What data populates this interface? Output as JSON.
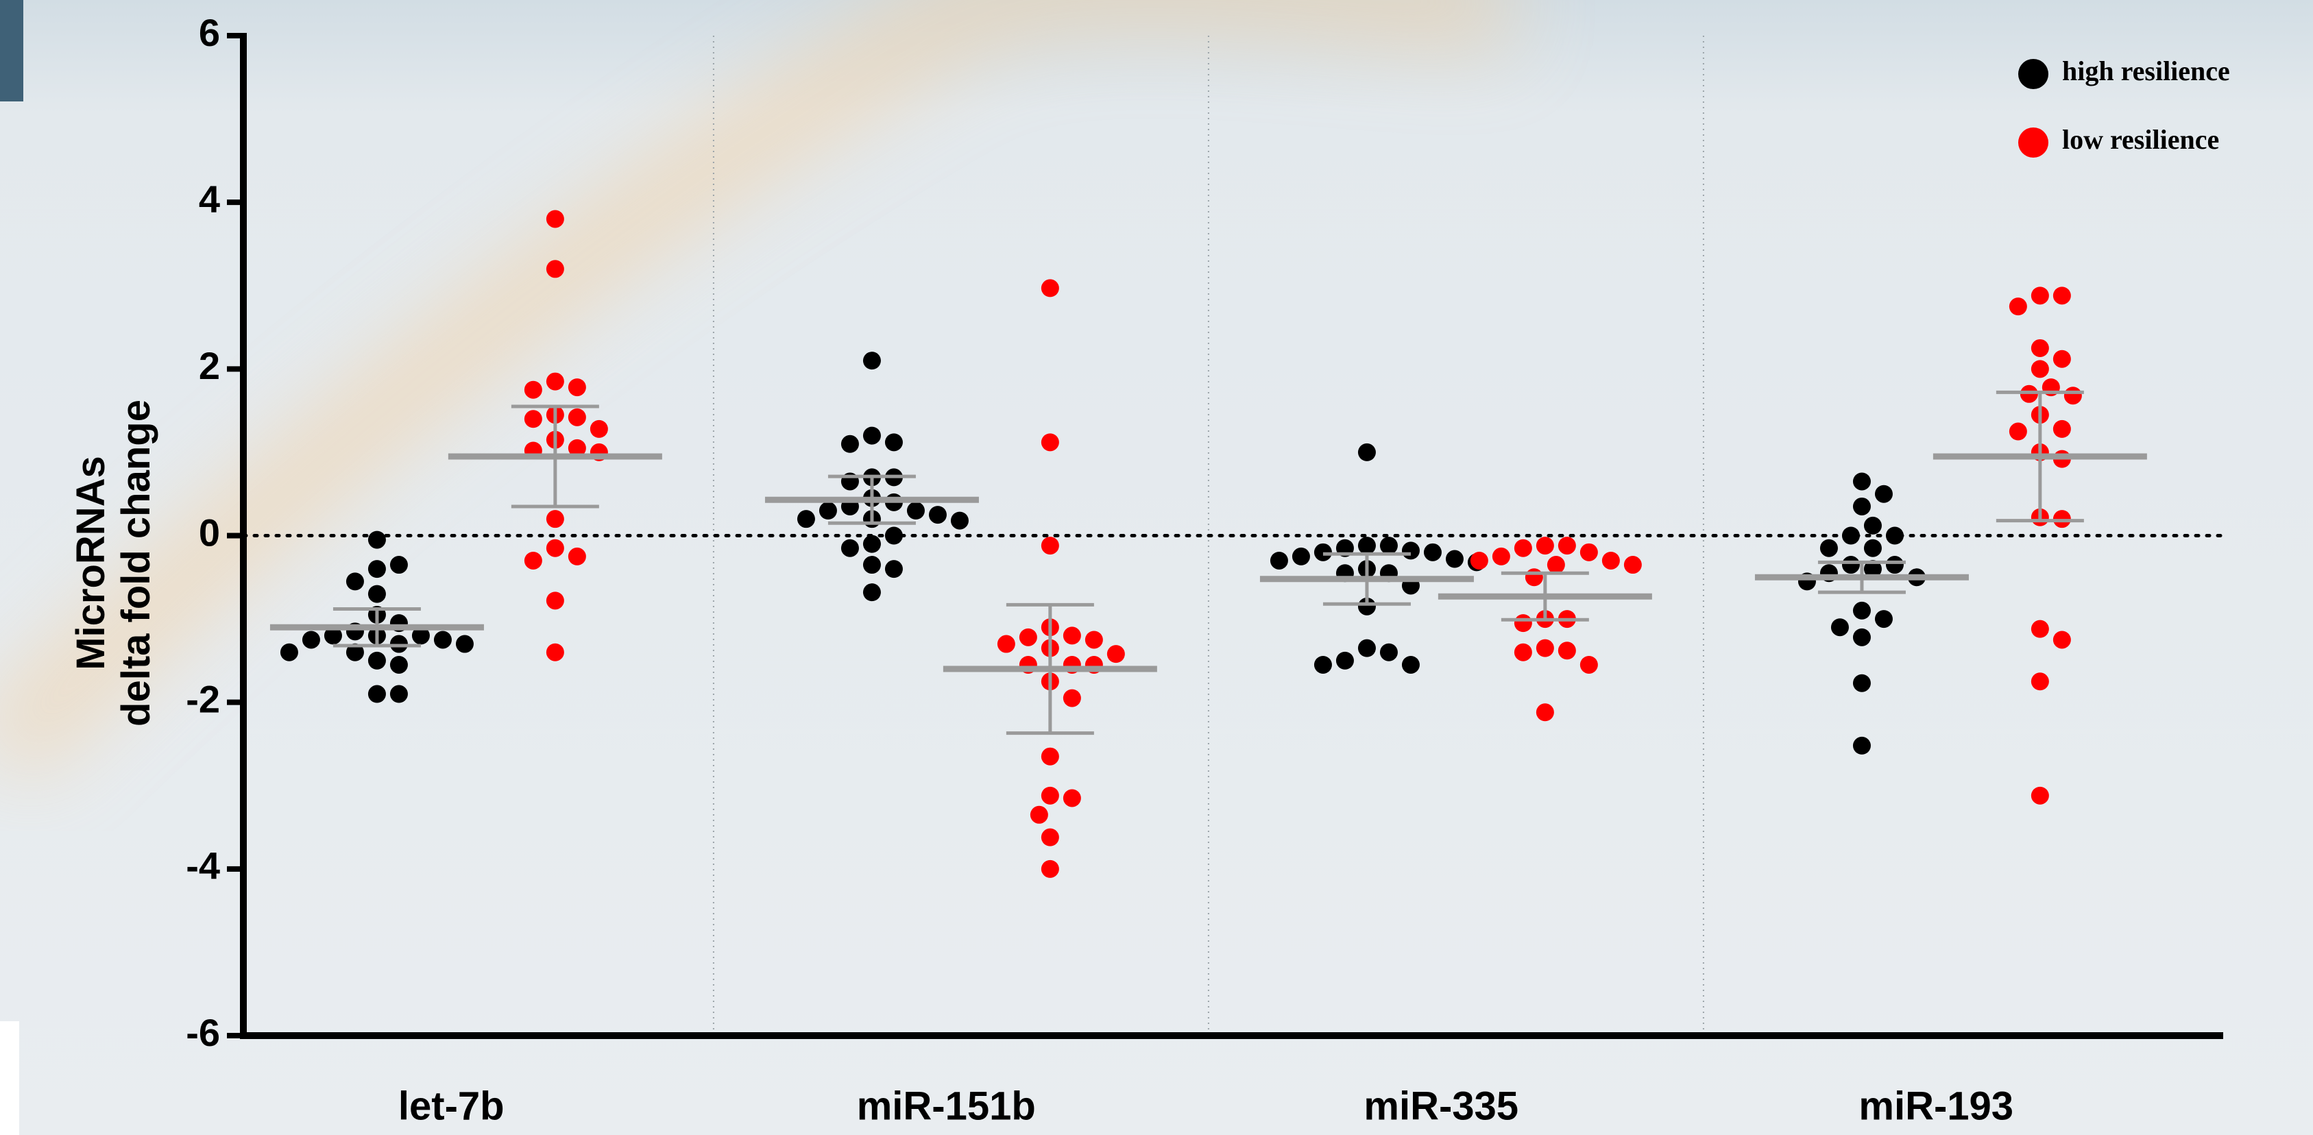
{
  "chart_data": {
    "type": "dot",
    "ylabel": [
      "MicroRNAs",
      "delta fold change"
    ],
    "categories": [
      "let-7b",
      "miR-151b",
      "miR-335",
      "miR-193"
    ],
    "ylim": [
      -6,
      6
    ],
    "yticks": [
      6,
      4,
      2,
      0,
      -2,
      -4,
      -6
    ],
    "reference_line": 0,
    "legend": "top-right",
    "series": [
      {
        "name": "high resilience",
        "color": "#000000",
        "values": [
          [
            -0.05,
            -0.4,
            -0.35,
            -0.55,
            -0.7,
            -0.95,
            -1.05,
            -1.15,
            -1.2,
            -1.2,
            -1.2,
            -1.25,
            -1.25,
            -1.3,
            -1.3,
            -1.4,
            -1.4,
            -1.5,
            -1.55,
            -1.9,
            -1.9
          ],
          [
            2.1,
            1.2,
            1.12,
            1.1,
            0.7,
            0.7,
            0.65,
            0.45,
            0.4,
            0.35,
            0.3,
            0.3,
            0.25,
            0.2,
            0.2,
            0.18,
            0.0,
            -0.1,
            -0.15,
            -0.35,
            -0.4,
            -0.68
          ],
          [
            1.0,
            -0.12,
            -0.12,
            -0.15,
            -0.18,
            -0.2,
            -0.2,
            -0.25,
            -0.28,
            -0.3,
            -0.32,
            -0.4,
            -0.45,
            -0.45,
            -0.6,
            -0.85,
            -1.35,
            -1.4,
            -1.5,
            -1.55,
            -1.55
          ],
          [
            0.65,
            0.5,
            0.35,
            0.12,
            0.0,
            0.0,
            -0.15,
            -0.15,
            -0.35,
            -0.35,
            -0.4,
            -0.45,
            -0.5,
            -0.55,
            -0.9,
            -1.0,
            -1.1,
            -1.22,
            -1.77,
            -2.52
          ]
        ],
        "means": [
          -1.1,
          0.43,
          -0.52,
          -0.5
        ],
        "errors": [
          0.22,
          0.28,
          0.3,
          0.18
        ]
      },
      {
        "name": "low resilience",
        "color": "#ff0000",
        "values": [
          [
            3.8,
            3.2,
            1.85,
            1.78,
            1.75,
            1.45,
            1.42,
            1.4,
            1.28,
            1.15,
            1.05,
            1.02,
            1.0,
            0.2,
            -0.15,
            -0.25,
            -0.3,
            -0.78,
            -1.4
          ],
          [
            2.97,
            1.12,
            -0.12,
            -1.1,
            -1.2,
            -1.22,
            -1.25,
            -1.3,
            -1.35,
            -1.42,
            -1.55,
            -1.55,
            -1.55,
            -1.75,
            -1.95,
            -2.65,
            -3.12,
            -3.15,
            -3.35,
            -3.62,
            -4.0
          ],
          [
            -0.12,
            -0.12,
            -0.15,
            -0.2,
            -0.25,
            -0.3,
            -0.3,
            -0.35,
            -0.35,
            -0.5,
            -1.0,
            -1.0,
            -1.05,
            -1.35,
            -1.38,
            -1.4,
            -1.55,
            -2.12
          ],
          [
            2.88,
            2.88,
            2.75,
            2.25,
            2.12,
            2.0,
            1.78,
            1.7,
            1.68,
            1.45,
            1.28,
            1.25,
            1.0,
            0.92,
            0.22,
            0.2,
            -1.12,
            -1.25,
            -1.75,
            -3.12
          ]
        ],
        "means": [
          0.95,
          -1.6,
          -0.73,
          0.95
        ],
        "errors": [
          0.6,
          0.77,
          0.28,
          0.77
        ]
      }
    ]
  }
}
